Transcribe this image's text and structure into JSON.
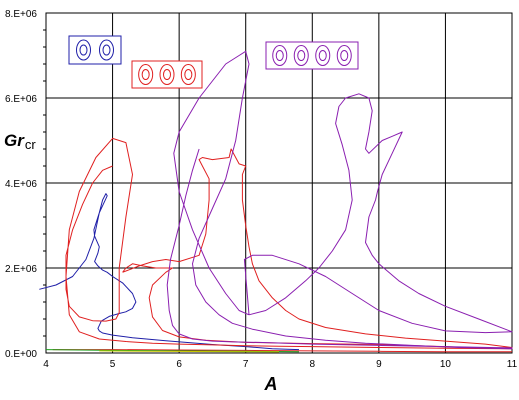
{
  "chart_data": {
    "type": "line",
    "xlabel": "A",
    "ylabel_main": "Gr",
    "ylabel_sub": "cr",
    "xlim": [
      4,
      11
    ],
    "ylim": [
      0,
      8000000
    ],
    "x_ticks": [
      4,
      5,
      6,
      7,
      8,
      9,
      10,
      11
    ],
    "x_tick_labels": [
      "4",
      "5",
      "6",
      "7",
      "8",
      "9",
      "10",
      "11"
    ],
    "y_ticks": [
      0,
      2000000,
      4000000,
      6000000,
      8000000
    ],
    "y_tick_labels": [
      "0.E+00",
      "2.E+06",
      "4.E+06",
      "6.E+06",
      "8.E+06"
    ],
    "grid": true,
    "legend_boxes": [
      {
        "color": "#1f1fa8",
        "cells": 2
      },
      {
        "color": "#e02020",
        "cells": 3
      },
      {
        "color": "#8a1fb0",
        "cells": 4
      }
    ],
    "series": [
      {
        "color": "#1f1fa8",
        "x": [
          3.9,
          4.15,
          4.4,
          4.6,
          4.72,
          4.8,
          4.85,
          4.9,
          4.92,
          4.8,
          4.75,
          4.72,
          4.73,
          4.8,
          4.78,
          4.73,
          4.78,
          4.85,
          4.92,
          5.0,
          5.15,
          5.3,
          5.35,
          5.3,
          5.2,
          5.1,
          4.95,
          4.83,
          4.8,
          4.78,
          4.8,
          4.85,
          5.0,
          5.3,
          5.8,
          6.5,
          7.0,
          7.4,
          7.8
        ],
        "y": [
          1500000,
          1600000,
          1800000,
          2200000,
          2700000,
          3300000,
          3600000,
          3750000,
          3700000,
          3300000,
          3050000,
          2900000,
          2750000,
          2500000,
          2350000,
          2150000,
          2050000,
          1950000,
          1900000,
          1800000,
          1650000,
          1400000,
          1200000,
          1050000,
          970000,
          930000,
          860000,
          750000,
          650000,
          580000,
          520000,
          470000,
          420000,
          360000,
          290000,
          200000,
          150000,
          100000,
          80000
        ]
      },
      {
        "color": "#e02020",
        "x": [
          5.0,
          4.85,
          4.7,
          4.55,
          4.4,
          4.3,
          4.3,
          4.35,
          4.5,
          4.7,
          4.9,
          5.05,
          5.1,
          5.1,
          5.2,
          5.3,
          5.2,
          5.0,
          4.75,
          4.5,
          4.35,
          4.3,
          4.35,
          4.5,
          4.8,
          5.2,
          5.6,
          6.0,
          6.5,
          7.0,
          7.5,
          8.0,
          9.0,
          10.0,
          11.0
        ],
        "y": [
          4400000,
          4300000,
          4000000,
          3500000,
          2900000,
          2300000,
          1500000,
          1100000,
          850000,
          760000,
          750000,
          800000,
          950000,
          2000000,
          3200000,
          4200000,
          4950000,
          5050000,
          4600000,
          3800000,
          2900000,
          1800000,
          900000,
          500000,
          330000,
          270000,
          230000,
          210000,
          190000,
          170000,
          160000,
          150000,
          130000,
          110000,
          100000
        ]
      },
      {
        "color": "#e02020",
        "x": [
          4.1,
          5.0,
          6.0,
          7.0,
          8.0,
          9.0,
          10.0,
          11.0
        ],
        "y": [
          80000,
          80000,
          70000,
          60000,
          50000,
          40000,
          30000,
          30000
        ]
      },
      {
        "color": "#e02020",
        "x": [
          5.15,
          5.4,
          5.6,
          5.8,
          6.0,
          6.3,
          6.4,
          6.45,
          6.45,
          6.35,
          6.3,
          6.35,
          6.5,
          6.75,
          6.78,
          6.9,
          7.0,
          6.95,
          6.95,
          7.0,
          7.05,
          7.1,
          7.2,
          7.4,
          7.6,
          7.8,
          8.2,
          8.8,
          9.4,
          10.0,
          10.6,
          11.0,
          10.6,
          10.0,
          9.0,
          8.0,
          7.0,
          6.4,
          6.0,
          5.75,
          5.6,
          5.55,
          5.6,
          5.8,
          5.9,
          5.65,
          5.45,
          5.3,
          5.2,
          5.15
        ],
        "y": [
          1900000,
          2050000,
          2150000,
          2200000,
          2150000,
          2300000,
          2800000,
          3600000,
          4100000,
          4400000,
          4550000,
          4600000,
          4550000,
          4600000,
          4800000,
          4450000,
          4400000,
          4200000,
          3600000,
          3000000,
          2500000,
          2100000,
          1700000,
          1300000,
          1000000,
          800000,
          600000,
          450000,
          350000,
          280000,
          210000,
          130000,
          110000,
          150000,
          200000,
          220000,
          250000,
          300000,
          380000,
          530000,
          850000,
          1300000,
          1600000,
          1900000,
          2000000,
          2000000,
          2050000,
          2100000,
          2000000,
          1900000
        ]
      },
      {
        "color": "#8a1fb0",
        "x": [
          6.3,
          6.2,
          6.1,
          6.0,
          5.87,
          5.82,
          5.85,
          5.9,
          6.0,
          6.2,
          6.5,
          6.8,
          7.2,
          7.6,
          8.0,
          9.0,
          10.0,
          11.0,
          11.0,
          10.2,
          9.5,
          8.8,
          8.2,
          7.6,
          7.1,
          6.8,
          6.6,
          6.4,
          6.25,
          6.2,
          6.3,
          6.5,
          6.7,
          6.85,
          6.95,
          7.05,
          7.0,
          6.9,
          6.7,
          6.5,
          6.3,
          6.15,
          6.0,
          5.92,
          6.0,
          6.2,
          6.45,
          6.7,
          6.9,
          7.05
        ],
        "y": [
          4800000,
          4300000,
          3700000,
          3000000,
          2200000,
          1600000,
          1000000,
          650000,
          450000,
          330000,
          280000,
          260000,
          250000,
          230000,
          210000,
          180000,
          150000,
          120000,
          100000,
          130000,
          180000,
          230000,
          300000,
          400000,
          560000,
          700000,
          900000,
          1200000,
          1600000,
          2100000,
          2700000,
          3400000,
          4100000,
          5000000,
          6000000,
          6800000,
          7100000,
          7000000,
          6800000,
          6400000,
          6000000,
          5600000,
          5200000,
          4700000,
          3800000,
          2900000,
          2000000,
          1400000,
          1000000,
          900000
        ]
      },
      {
        "color": "#8a1fb0",
        "x": [
          7.05,
          7.3,
          7.6,
          7.9,
          8.1,
          8.3,
          8.5,
          8.6,
          8.55,
          8.45,
          8.35,
          8.4,
          8.5,
          8.7,
          8.85,
          8.9,
          8.85,
          8.8,
          8.85,
          9.05,
          9.2,
          9.35,
          9.2,
          9.05,
          8.98,
          8.95,
          8.9,
          8.85,
          8.8,
          8.9,
          9.0,
          9.15,
          9.3,
          9.6,
          10.0,
          10.5,
          11.0,
          10.6,
          10.0,
          9.5,
          9.0,
          8.6,
          8.2,
          7.8,
          7.4,
          7.1,
          6.98,
          7.05
        ],
        "y": [
          900000,
          1000000,
          1300000,
          1700000,
          2000000,
          2400000,
          2900000,
          3600000,
          4300000,
          4900000,
          5400000,
          5800000,
          6000000,
          6100000,
          6000000,
          5700000,
          5200000,
          4800000,
          4700000,
          5000000,
          5100000,
          5200000,
          4700000,
          4200000,
          3800000,
          3600000,
          3400000,
          3200000,
          2600000,
          2300000,
          2100000,
          1900000,
          1700000,
          1400000,
          1100000,
          800000,
          500000,
          480000,
          520000,
          700000,
          1000000,
          1400000,
          1800000,
          2100000,
          2300000,
          2300000,
          2200000,
          900000
        ]
      },
      {
        "color": "#1aa01a",
        "x": [
          4.0,
          5.0,
          6.0,
          7.0,
          7.8
        ],
        "y": [
          80000,
          60000,
          50000,
          40000,
          30000
        ]
      },
      {
        "color": "#c8c800",
        "x": [
          4.8,
          5.5,
          6.2,
          7.0,
          7.5
        ],
        "y": [
          50000,
          40000,
          35000,
          30000,
          25000
        ]
      }
    ]
  }
}
